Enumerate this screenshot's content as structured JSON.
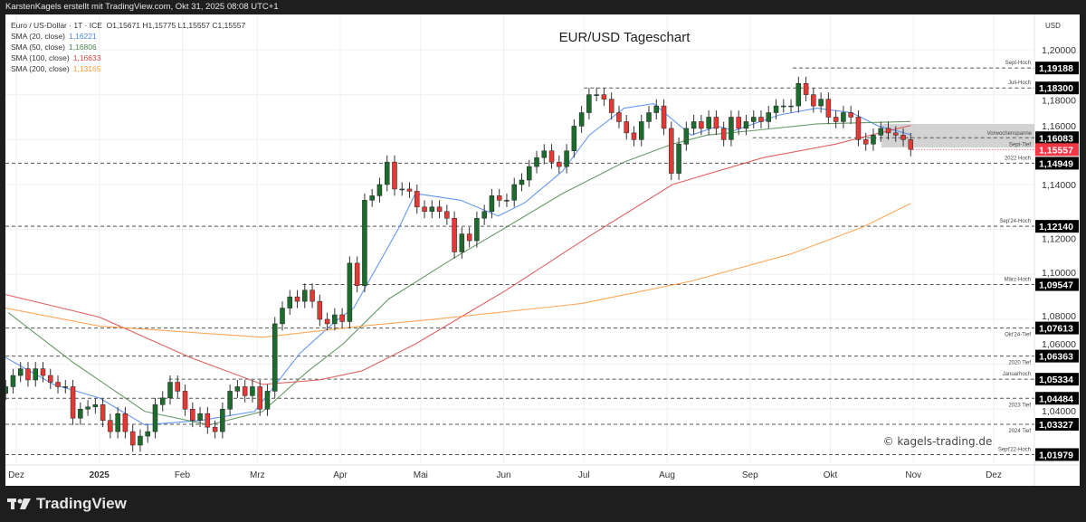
{
  "header": "KarstenKagels erstellt mit TradingView.com, Okt 31, 2025 08:08 UTC+1",
  "legend": {
    "symbol": "Euro / US-Dollar · 1T · ICE",
    "ohlc": "O1,15671  H1,15775  L1,15557  C1,15557",
    "sma": [
      {
        "label": "SMA (20, close)",
        "value": "1,16221",
        "color": "#4a86f0"
      },
      {
        "label": "SMA (50, close)",
        "value": "1,16806",
        "color": "#4d8a4d"
      },
      {
        "label": "SMA (100, close)",
        "value": "1,16633",
        "color": "#d94545"
      },
      {
        "label": "SMA (200, close)",
        "value": "1,13165",
        "color": "#ff9a3c"
      }
    ]
  },
  "footer": {
    "brand": "TradingView"
  },
  "chart_data": {
    "type": "candlestick",
    "title": "EUR/USD Tageschart",
    "currency": "USD",
    "watermark": "© kagels-trading.de",
    "first_date": "2024-11-27",
    "last_date": "2025-10-31",
    "ylim": [
      1.0,
      1.21
    ],
    "y_ticks": [
      "1,20000",
      "1,18000",
      "1,16000",
      "1,14000",
      "1,12000",
      "1,10000",
      "1,08000",
      "1,06000",
      "1,04000"
    ],
    "y_tick_values": [
      1.2,
      1.18,
      1.16,
      1.14,
      1.12,
      1.1,
      1.08,
      1.06,
      1.04
    ],
    "x_ticks": [
      {
        "label": "Dez",
        "date": "2024-12-01"
      },
      {
        "label": "2025",
        "date": "2025-01-01",
        "bold": true
      },
      {
        "label": "Feb",
        "date": "2025-02-01"
      },
      {
        "label": "Mrz",
        "date": "2025-03-01"
      },
      {
        "label": "Apr",
        "date": "2025-04-01"
      },
      {
        "label": "Mai",
        "date": "2025-05-01"
      },
      {
        "label": "Jun",
        "date": "2025-06-01"
      },
      {
        "label": "Jul",
        "date": "2025-07-01"
      },
      {
        "label": "Aug",
        "date": "2025-08-01"
      },
      {
        "label": "Sep",
        "date": "2025-09-01"
      },
      {
        "label": "Okt",
        "date": "2025-10-01"
      },
      {
        "label": "Nov",
        "date": "2025-11-01"
      },
      {
        "label": "Dez",
        "date": "2025-12-01"
      }
    ],
    "closes": [
      1.05,
      1.055,
      1.058,
      1.053,
      1.058,
      1.055,
      1.052,
      1.05,
      1.05,
      1.036,
      1.04,
      1.041,
      1.042,
      1.035,
      1.03,
      1.038,
      1.03,
      1.024,
      1.028,
      1.03,
      1.042,
      1.045,
      1.052,
      1.048,
      1.04,
      1.035,
      1.038,
      1.032,
      1.03,
      1.04,
      1.048,
      1.05,
      1.046,
      1.05,
      1.04,
      1.048,
      1.078,
      1.085,
      1.09,
      1.088,
      1.093,
      1.088,
      1.08,
      1.078,
      1.082,
      1.079,
      1.105,
      1.095,
      1.133,
      1.135,
      1.14,
      1.15,
      1.138,
      1.138,
      1.137,
      1.13,
      1.128,
      1.13,
      1.128,
      1.125,
      1.11,
      1.118,
      1.115,
      1.125,
      1.128,
      1.135,
      1.133,
      1.133,
      1.14,
      1.142,
      1.148,
      1.152,
      1.155,
      1.15,
      1.148,
      1.155,
      1.166,
      1.172,
      1.18,
      1.18,
      1.178,
      1.172,
      1.168,
      1.163,
      1.16,
      1.168,
      1.172,
      1.175,
      1.165,
      1.145,
      1.158,
      1.165,
      1.168,
      1.165,
      1.17,
      1.165,
      1.16,
      1.17,
      1.165,
      1.168,
      1.17,
      1.168,
      1.172,
      1.175,
      1.175,
      1.175,
      1.185,
      1.18,
      1.175,
      1.178,
      1.17,
      1.168,
      1.172,
      1.17,
      1.16,
      1.158,
      1.162,
      1.165,
      1.163,
      1.162,
      1.16,
      1.1556
    ],
    "sma_series": [
      {
        "name": "SMA 20",
        "color": "#4a86f0",
        "points": [
          [
            "2024-11-27",
            1.063
          ],
          [
            "2024-12-15",
            1.051
          ],
          [
            "2025-01-01",
            1.045
          ],
          [
            "2025-01-18",
            1.033
          ],
          [
            "2025-02-08",
            1.035
          ],
          [
            "2025-02-28",
            1.039
          ],
          [
            "2025-03-17",
            1.065
          ],
          [
            "2025-03-30",
            1.079
          ],
          [
            "2025-04-06",
            1.085
          ],
          [
            "2025-04-23",
            1.121
          ],
          [
            "2025-04-29",
            1.136
          ],
          [
            "2025-05-16",
            1.133
          ],
          [
            "2025-05-30",
            1.126
          ],
          [
            "2025-06-09",
            1.132
          ],
          [
            "2025-06-23",
            1.146
          ],
          [
            "2025-07-03",
            1.162
          ],
          [
            "2025-07-16",
            1.174
          ],
          [
            "2025-07-27",
            1.176
          ],
          [
            "2025-08-10",
            1.162
          ],
          [
            "2025-08-20",
            1.166
          ],
          [
            "2025-08-26",
            1.164
          ],
          [
            "2025-09-12",
            1.171
          ],
          [
            "2025-09-26",
            1.174
          ],
          [
            "2025-10-09",
            1.172
          ],
          [
            "2025-10-19",
            1.166
          ],
          [
            "2025-10-31",
            1.16221
          ]
        ]
      },
      {
        "name": "SMA 50",
        "color": "#4d8a4d",
        "points": [
          [
            "2024-11-28",
            1.083
          ],
          [
            "2024-12-22",
            1.061
          ],
          [
            "2025-01-18",
            1.039
          ],
          [
            "2025-02-11",
            1.033
          ],
          [
            "2025-03-03",
            1.039
          ],
          [
            "2025-03-20",
            1.057
          ],
          [
            "2025-04-02",
            1.069
          ],
          [
            "2025-04-19",
            1.089
          ],
          [
            "2025-05-13",
            1.107
          ],
          [
            "2025-06-02",
            1.121
          ],
          [
            "2025-06-23",
            1.136
          ],
          [
            "2025-07-16",
            1.15
          ],
          [
            "2025-08-03",
            1.158
          ],
          [
            "2025-08-16",
            1.162
          ],
          [
            "2025-09-02",
            1.164
          ],
          [
            "2025-09-26",
            1.167
          ],
          [
            "2025-10-31",
            1.16806
          ]
        ]
      },
      {
        "name": "SMA 100",
        "color": "#d94545",
        "points": [
          [
            "2024-11-27",
            1.091
          ],
          [
            "2025-01-01",
            1.081
          ],
          [
            "2025-02-04",
            1.063
          ],
          [
            "2025-03-03",
            1.051
          ],
          [
            "2025-03-24",
            1.053
          ],
          [
            "2025-04-09",
            1.057
          ],
          [
            "2025-04-29",
            1.069
          ],
          [
            "2025-06-02",
            1.093
          ],
          [
            "2025-07-03",
            1.117
          ],
          [
            "2025-08-03",
            1.14
          ],
          [
            "2025-09-06",
            1.152
          ],
          [
            "2025-10-03",
            1.158
          ],
          [
            "2025-10-16",
            1.162
          ],
          [
            "2025-10-31",
            1.16633
          ]
        ]
      },
      {
        "name": "SMA 200",
        "color": "#ff9a3c",
        "points": [
          [
            "2024-11-27",
            1.085
          ],
          [
            "2025-01-01",
            1.077
          ],
          [
            "2025-03-03",
            1.072
          ],
          [
            "2025-04-09",
            1.077
          ],
          [
            "2025-05-06",
            1.08
          ],
          [
            "2025-06-30",
            1.087
          ],
          [
            "2025-08-10",
            1.097
          ],
          [
            "2025-09-16",
            1.109
          ],
          [
            "2025-10-13",
            1.121
          ],
          [
            "2025-10-31",
            1.13165
          ]
        ]
      }
    ],
    "levels": [
      {
        "label": "Sept-Hoch",
        "price": 1.19188,
        "value": "1,19188",
        "from": "2025-09-17"
      },
      {
        "label": "Juli-Hoch",
        "price": 1.183,
        "value": "1,18300",
        "from": "2025-07-01"
      },
      {
        "label": "Sept-Tief",
        "price": 1.16083,
        "value": "1,16083",
        "from": "2025-09-02",
        "below": true
      },
      {
        "label": "2022 Hoch",
        "price": 1.14949,
        "value": "1,14949"
      },
      {
        "label": "Sep'24-Hoch",
        "price": 1.1214,
        "value": "1,12140"
      },
      {
        "label": "März-Hoch",
        "price": 1.09547,
        "value": "1,09547",
        "from": "2025-03-18"
      },
      {
        "label": "Okt'24-Tief",
        "price": 1.07613,
        "value": "1,07613",
        "below": true
      },
      {
        "label": "2020 Tief",
        "price": 1.06363,
        "value": "1,06363",
        "below": true
      },
      {
        "label": "Januarhoch",
        "price": 1.05334,
        "value": "1,05334",
        "from": "2025-01-27"
      },
      {
        "label": "2023 Tief",
        "price": 1.04484,
        "value": "1,04484",
        "below": true
      },
      {
        "label": "2024 Tief",
        "price": 1.03327,
        "value": "1,03327",
        "below": true
      },
      {
        "label": "Sept'22-Hoch",
        "price": 1.01979,
        "value": "1,01979"
      }
    ],
    "range_box": {
      "label": "Vorwochenspanne",
      "low": 1.1565,
      "high": 1.167,
      "from": "2025-10-20"
    },
    "last_price": {
      "price": 1.15557,
      "value": "1,15557",
      "color": "#f23645"
    }
  }
}
